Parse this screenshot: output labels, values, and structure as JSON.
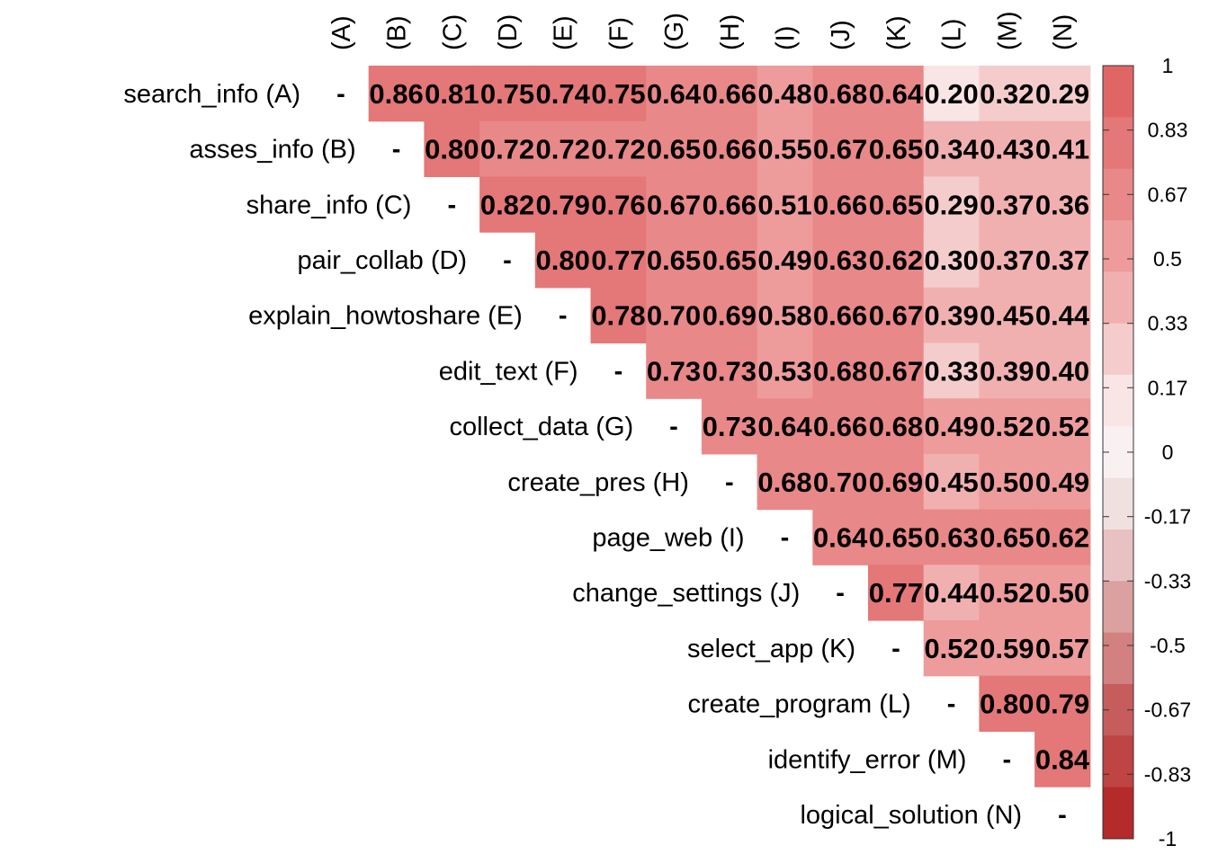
{
  "chart_data": {
    "type": "heatmap",
    "title": "",
    "row_labels": [
      "search_info (A)",
      "asses_info (B)",
      "share_info (C)",
      "pair_collab (D)",
      "explain_howtoshare (E)",
      "edit_text (F)",
      "collect_data (G)",
      "create_pres (H)",
      "page_web (I)",
      "change_settings (J)",
      "select_app (K)",
      "create_program (L)",
      "identify_error (M)",
      "logical_solution (N)"
    ],
    "column_labels": [
      "(A)",
      "(B)",
      "(C)",
      "(D)",
      "(E)",
      "(F)",
      "(G)",
      "(H)",
      "(I)",
      "(J)",
      "(K)",
      "(L)",
      "(M)",
      "(N)"
    ],
    "diagonal_label": "-",
    "upper_triangle_values": [
      [
        0.86,
        0.81,
        0.75,
        0.74,
        0.75,
        0.64,
        0.66,
        0.48,
        0.68,
        0.64,
        0.2,
        0.32,
        0.29
      ],
      [
        0.8,
        0.72,
        0.72,
        0.72,
        0.65,
        0.66,
        0.55,
        0.67,
        0.65,
        0.34,
        0.43,
        0.41
      ],
      [
        0.82,
        0.79,
        0.76,
        0.67,
        0.66,
        0.51,
        0.66,
        0.65,
        0.29,
        0.37,
        0.36
      ],
      [
        0.8,
        0.77,
        0.65,
        0.65,
        0.49,
        0.63,
        0.62,
        0.3,
        0.37,
        0.37
      ],
      [
        0.78,
        0.7,
        0.69,
        0.58,
        0.66,
        0.67,
        0.39,
        0.45,
        0.44
      ],
      [
        0.73,
        0.73,
        0.53,
        0.68,
        0.67,
        0.33,
        0.39,
        0.4
      ],
      [
        0.73,
        0.64,
        0.66,
        0.68,
        0.49,
        0.52,
        0.52
      ],
      [
        0.68,
        0.7,
        0.69,
        0.45,
        0.5,
        0.49
      ],
      [
        0.64,
        0.65,
        0.63,
        0.65,
        0.62
      ],
      [
        0.77,
        0.44,
        0.52,
        0.5
      ],
      [
        0.52,
        0.59,
        0.57
      ],
      [
        0.8,
        0.79
      ],
      [
        0.84
      ]
    ],
    "color_scale": {
      "min": -1,
      "max": 1,
      "tick_labels": [
        "1",
        "0.83",
        "0.67",
        "0.5",
        "0.33",
        "0.17",
        "0",
        "-0.17",
        "-0.33",
        "-0.5",
        "-0.67",
        "-0.83",
        "-1"
      ],
      "colors_top_to_bottom": [
        "#e06666",
        "#e47777",
        "#e98888",
        "#ed9b9b",
        "#f1b0b0",
        "#f5cccc",
        "#f9e5e5",
        "#f9f1f1",
        "#f0e0e0",
        "#e8c2c2",
        "#dba0a0",
        "#d28080",
        "#c65c5c",
        "#bf4444",
        "#b52a2a"
      ]
    },
    "legend_position": "right"
  }
}
